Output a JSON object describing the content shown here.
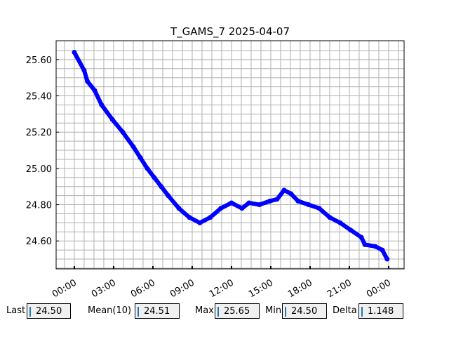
{
  "chart_data": {
    "type": "line",
    "title": "T_GAMS_7 2025-04-07",
    "xlabel": "",
    "ylabel": "",
    "x_tick_labels": [
      "00:00",
      "03:00",
      "06:00",
      "09:00",
      "12:00",
      "15:00",
      "18:00",
      "21:00",
      "00:00"
    ],
    "y_tick_labels": [
      "24.60",
      "24.80",
      "25.00",
      "25.20",
      "25.40",
      "25.60"
    ],
    "y_ticks": [
      24.6,
      24.8,
      25.0,
      25.2,
      25.4,
      25.6
    ],
    "ylim": [
      24.446,
      25.704
    ],
    "xlim_hours": [
      -1.39,
      25.18
    ],
    "grid": true,
    "series_color": "#0000ff",
    "marker": "circle",
    "x": [
      "00:00",
      "00:45",
      "01:00",
      "01:33",
      "02:05",
      "02:54",
      "03:42",
      "04:30",
      "05:02",
      "05:34",
      "06:06",
      "06:38",
      "07:10",
      "07:59",
      "08:47",
      "09:35",
      "10:23",
      "11:11",
      "12:00",
      "12:48",
      "13:20",
      "14:08",
      "14:56",
      "15:29",
      "16:01",
      "16:33",
      "17:05",
      "17:53",
      "18:42",
      "19:30",
      "20:18",
      "21:06",
      "21:55",
      "22:11",
      "22:59",
      "23:31",
      "23:53"
    ],
    "values": [
      25.64,
      25.54,
      25.48,
      25.43,
      25.35,
      25.27,
      25.2,
      25.12,
      25.06,
      25.0,
      24.95,
      24.9,
      24.85,
      24.78,
      24.73,
      24.7,
      24.73,
      24.78,
      24.81,
      24.78,
      24.81,
      24.8,
      24.82,
      24.83,
      24.88,
      24.86,
      24.82,
      24.8,
      24.78,
      24.73,
      24.7,
      24.66,
      24.62,
      24.58,
      24.57,
      24.55,
      24.5
    ]
  },
  "stats": {
    "last_label": "Last",
    "last_value": "24.50",
    "mean_label": "Mean(10)",
    "mean_value": "24.51",
    "max_label": "Max",
    "max_value": "25.65",
    "min_label": "Min",
    "min_value": "24.50",
    "delta_label": "Delta",
    "delta_value": "1.148"
  }
}
